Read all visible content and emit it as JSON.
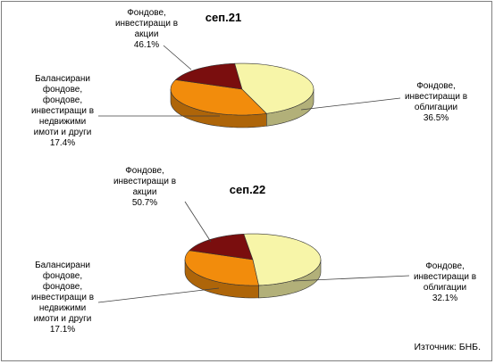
{
  "colors": {
    "stocks": "#f7f5a8",
    "bonds": "#f28c0c",
    "balanced": "#7a0e0e",
    "leader": "#404040"
  },
  "source": "Източник: БНБ.",
  "chart_data": [
    {
      "type": "pie",
      "title": "сеп.21",
      "slices": [
        {
          "label": "Фондове, инвестиращи в акции",
          "value": 46.1,
          "value_label": "46.1%"
        },
        {
          "label": "Фондове, инвестиращи в облигации",
          "value": 36.5,
          "value_label": "36.5%"
        },
        {
          "label": "Балансирани фондове, фондове, инвестиращи в недвижими имоти и други",
          "value": 17.4,
          "value_label": "17.4%"
        }
      ]
    },
    {
      "type": "pie",
      "title": "сеп.22",
      "slices": [
        {
          "label": "Фондове, инвестиращи в акции",
          "value": 50.7,
          "value_label": "50.7%"
        },
        {
          "label": "Фондове, инвестиращи в облигации",
          "value": 32.1,
          "value_label": "32.1%"
        },
        {
          "label": "Балансирани фондове, фондове, инвестиращи в недвижими имоти и други",
          "value": 17.1,
          "value_label": "17.1%"
        }
      ]
    }
  ],
  "label_lines": {
    "stocks": [
      "Фондове,",
      "инвестиращи в",
      "акции"
    ],
    "bonds": [
      "Фондове,",
      "инвестиращи в",
      "облигации"
    ],
    "balanced": [
      "Балансирани",
      "фондове,",
      "фондове,",
      "инвестиращи в",
      "недвижими",
      "имоти и други"
    ]
  }
}
